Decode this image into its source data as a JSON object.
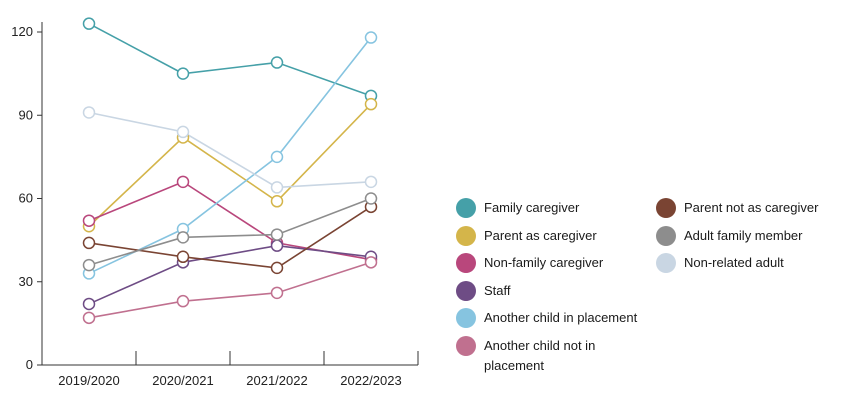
{
  "chart_data": {
    "type": "line",
    "categories": [
      "2019/2020",
      "2020/2021",
      "2021/2022",
      "2022/2023"
    ],
    "ylim": [
      0,
      120
    ],
    "yticks": [
      0,
      30,
      60,
      90,
      120
    ],
    "grid": false,
    "legend_placement": "right",
    "series": [
      {
        "name": "Family caregiver",
        "color": "#45a0a8",
        "values": [
          123,
          105,
          109,
          97
        ]
      },
      {
        "name": "Parent as caregiver",
        "color": "#d4b54a",
        "values": [
          50,
          82,
          59,
          94
        ]
      },
      {
        "name": "Non-family caregiver",
        "color": "#b9477c",
        "values": [
          52,
          66,
          44,
          38
        ]
      },
      {
        "name": "Staff",
        "color": "#6e4c85",
        "values": [
          22,
          37,
          43,
          39
        ]
      },
      {
        "name": "Another child in placement",
        "color": "#86c4e0",
        "values": [
          33,
          49,
          75,
          118
        ]
      },
      {
        "name": "Another child not in placement",
        "color": "#c0708f",
        "values": [
          17,
          23,
          26,
          37
        ]
      },
      {
        "name": "Parent not as caregiver",
        "color": "#7a4433",
        "values": [
          44,
          39,
          35,
          57
        ]
      },
      {
        "name": "Adult family member",
        "color": "#8d8d8d",
        "values": [
          36,
          46,
          47,
          60
        ]
      },
      {
        "name": "Non-related adult",
        "color": "#c9d6e3",
        "values": [
          91,
          84,
          64,
          66
        ]
      }
    ]
  }
}
